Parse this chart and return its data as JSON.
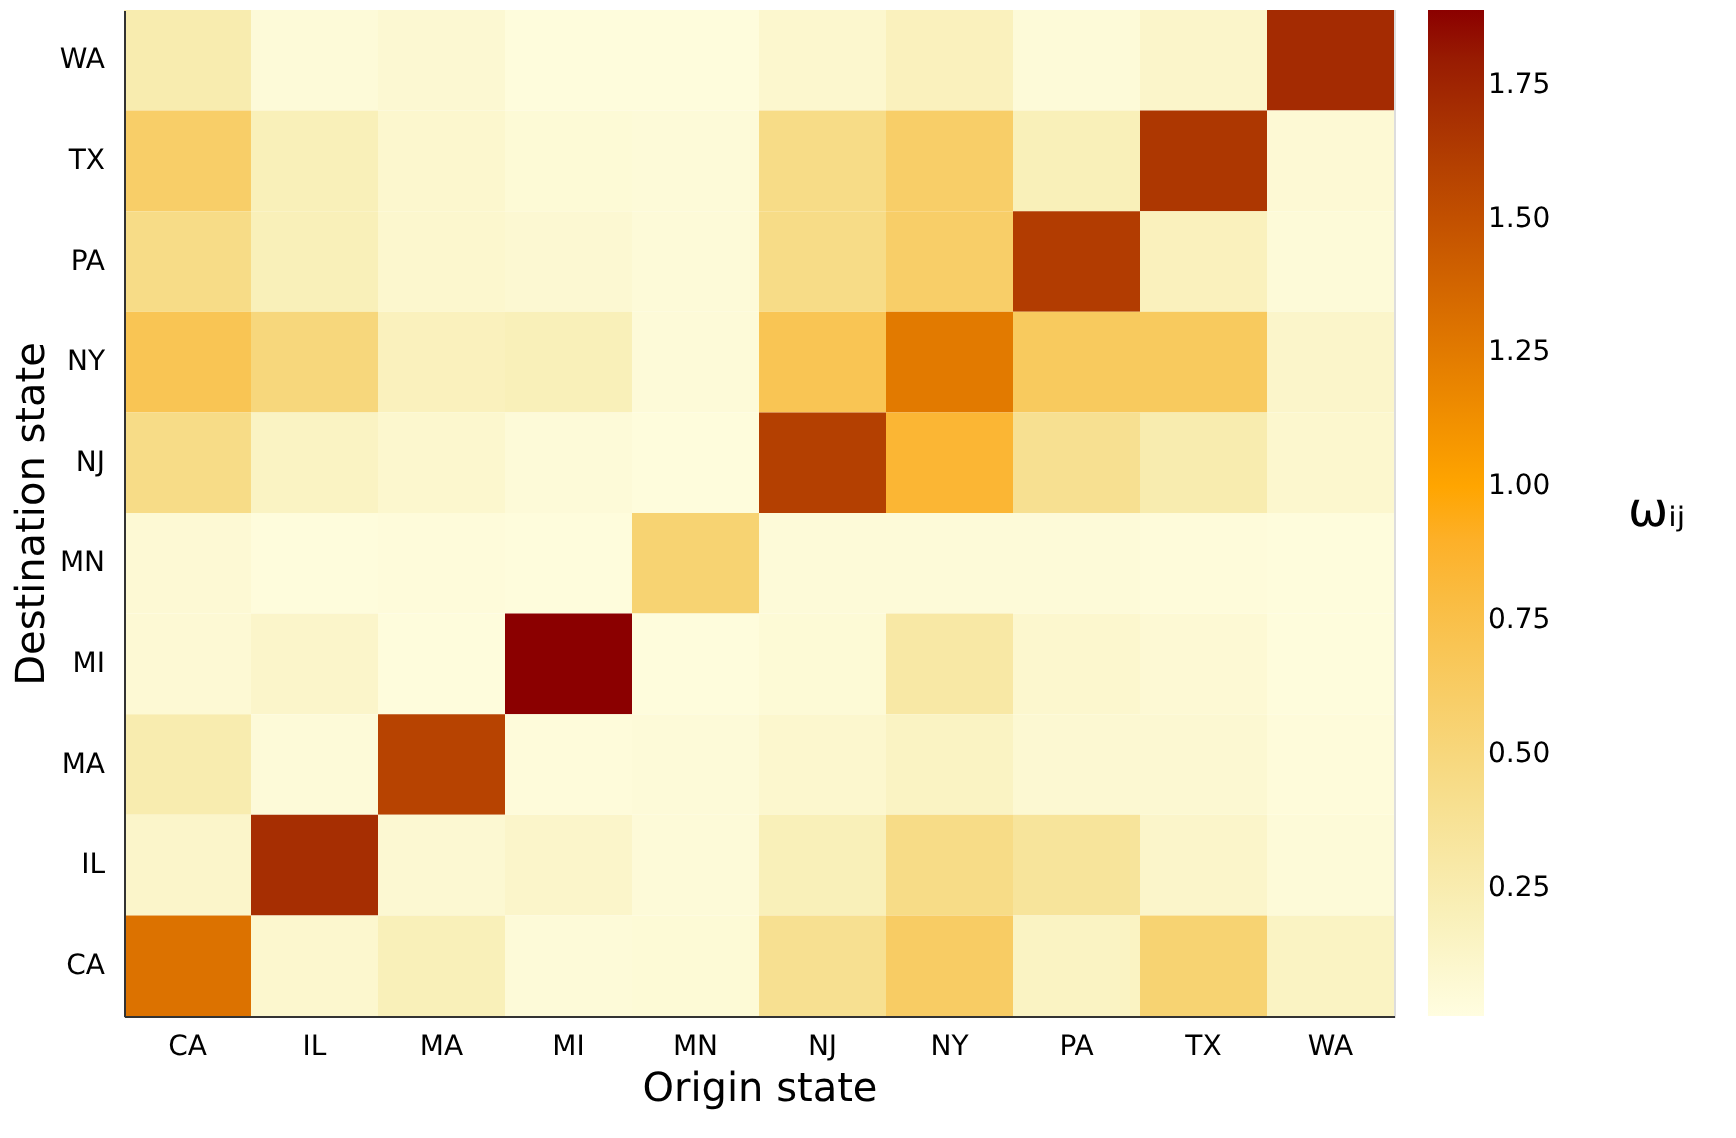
{
  "chart_data": {
    "type": "heatmap",
    "xlabel": "Origin state",
    "ylabel": "Destination state",
    "clabel": "ωᵢⱼ",
    "categories": [
      "CA",
      "IL",
      "MA",
      "MI",
      "MN",
      "NJ",
      "NY",
      "PA",
      "TX",
      "WA"
    ],
    "y_categories": [
      "WA",
      "TX",
      "PA",
      "NY",
      "NJ",
      "MN",
      "MI",
      "MA",
      "IL",
      "CA"
    ],
    "cells": [
      [
        0.25,
        0.05,
        0.08,
        0.03,
        0.03,
        0.1,
        0.18,
        0.05,
        0.12,
        1.72
      ],
      [
        0.6,
        0.2,
        0.1,
        0.06,
        0.05,
        0.45,
        0.6,
        0.2,
        1.65,
        0.07
      ],
      [
        0.45,
        0.2,
        0.1,
        0.08,
        0.05,
        0.45,
        0.6,
        1.62,
        0.18,
        0.05
      ],
      [
        0.7,
        0.5,
        0.18,
        0.2,
        0.05,
        0.7,
        1.25,
        0.65,
        0.65,
        0.12
      ],
      [
        0.45,
        0.15,
        0.1,
        0.05,
        0.03,
        1.6,
        0.85,
        0.4,
        0.25,
        0.1
      ],
      [
        0.07,
        0.03,
        0.04,
        0.03,
        0.55,
        0.05,
        0.05,
        0.05,
        0.04,
        0.03
      ],
      [
        0.07,
        0.12,
        0.03,
        1.89,
        0.03,
        0.06,
        0.3,
        0.1,
        0.07,
        0.03
      ],
      [
        0.25,
        0.05,
        1.58,
        0.04,
        0.05,
        0.1,
        0.15,
        0.08,
        0.08,
        0.04
      ],
      [
        0.12,
        1.7,
        0.08,
        0.12,
        0.05,
        0.2,
        0.45,
        0.35,
        0.12,
        0.05
      ],
      [
        1.3,
        0.1,
        0.2,
        0.05,
        0.06,
        0.4,
        0.62,
        0.15,
        0.55,
        0.15
      ]
    ],
    "clim": [
      0.01,
      1.89
    ],
    "cticks": [
      0.25,
      {
        "value": 0.5,
        "label": "0.50"
      },
      0.75,
      {
        "value": 1.0,
        "label": "1.00"
      },
      1.25,
      {
        "value": 1.5,
        "label": "1.50"
      },
      1.75
    ],
    "grid": false
  }
}
